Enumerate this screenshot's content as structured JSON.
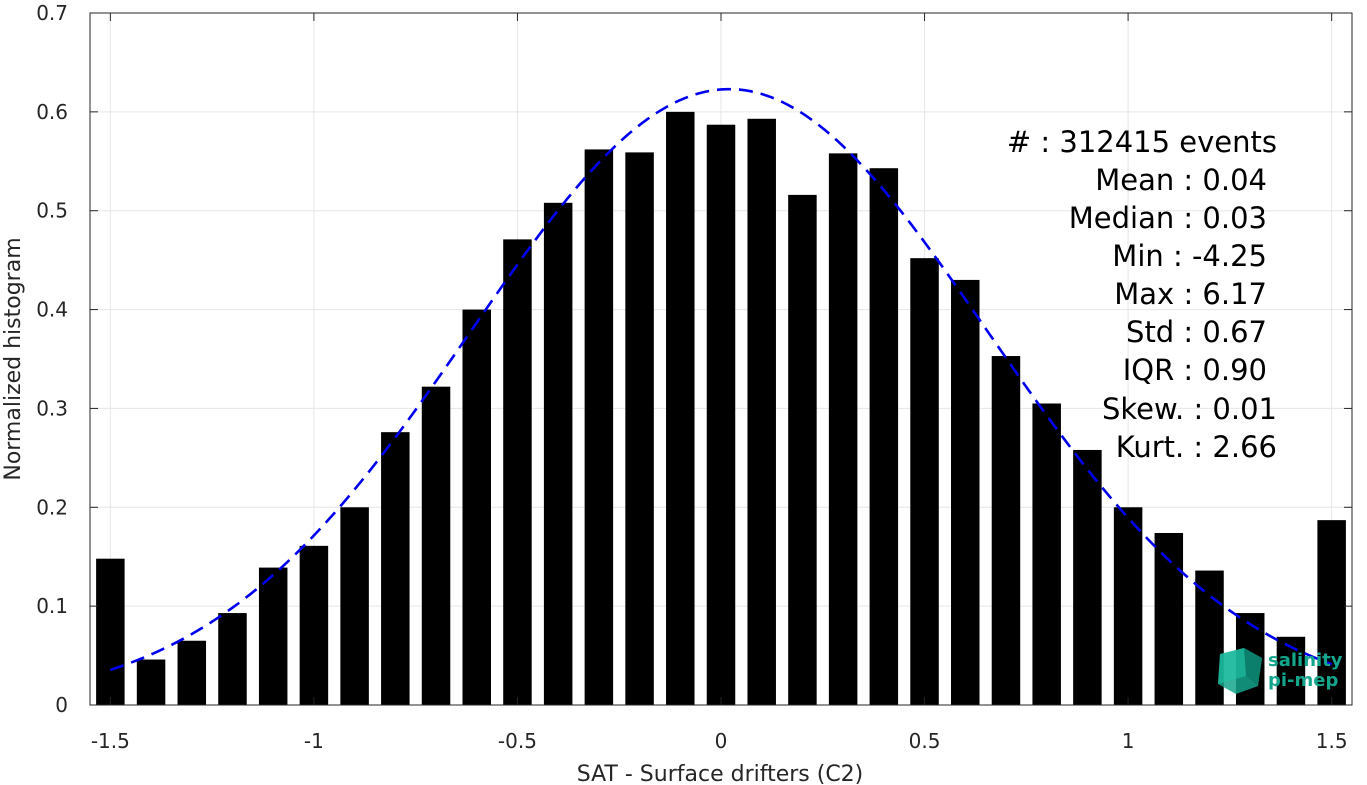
{
  "chart_data": {
    "type": "bar",
    "xlabel": "SAT - Surface drifters (C2)",
    "ylabel": "Normalized histogram",
    "xlim": [
      -1.55,
      1.55
    ],
    "ylim": [
      0,
      0.7
    ],
    "xticks": [
      -1.5,
      -1,
      -0.5,
      0,
      0.5,
      1,
      1.5
    ],
    "xtick_labels": [
      "-1.5",
      "-1",
      "-0.5",
      "0",
      "0.5",
      "1",
      "1.5"
    ],
    "yticks": [
      0,
      0.1,
      0.2,
      0.3,
      0.4,
      0.5,
      0.6,
      0.7
    ],
    "ytick_labels": [
      "0",
      "0.1",
      "0.2",
      "0.3",
      "0.4",
      "0.5",
      "0.6",
      "0.7"
    ],
    "grid": true,
    "bar_color": "#000000",
    "bar_width": 0.07,
    "x": [
      -1.5,
      -1.4,
      -1.3,
      -1.2,
      -1.1,
      -1.0,
      -0.9,
      -0.8,
      -0.7,
      -0.6,
      -0.5,
      -0.4,
      -0.3,
      -0.2,
      -0.1,
      0.0,
      0.1,
      0.2,
      0.3,
      0.4,
      0.5,
      0.6,
      0.7,
      0.8,
      0.9,
      1.0,
      1.1,
      1.2,
      1.3,
      1.4,
      1.5
    ],
    "values": [
      0.148,
      0.046,
      0.065,
      0.093,
      0.139,
      0.161,
      0.2,
      0.276,
      0.322,
      0.4,
      0.471,
      0.508,
      0.562,
      0.559,
      0.6,
      0.587,
      0.593,
      0.516,
      0.558,
      0.543,
      0.452,
      0.43,
      0.353,
      0.305,
      0.258,
      0.2,
      0.174,
      0.136,
      0.093,
      0.069,
      0.187
    ],
    "fit": {
      "type": "gaussian",
      "style": "dashed",
      "color": "#0000ee",
      "mean": 0.02,
      "std": 0.635,
      "peak": 0.623,
      "x_range": [
        -1.5,
        1.5
      ]
    },
    "stats": [
      "#   : 312415 events",
      "Mean : 0.04",
      "Median : 0.03",
      "Min : -4.25",
      "Max : 6.17",
      "Std : 0.67",
      "IQR : 0.90",
      "Skew. : 0.01",
      "Kurt. : 2.66"
    ],
    "logo": {
      "line1": "salinity",
      "line2": "pi-mep",
      "color": "#14a58c"
    }
  }
}
